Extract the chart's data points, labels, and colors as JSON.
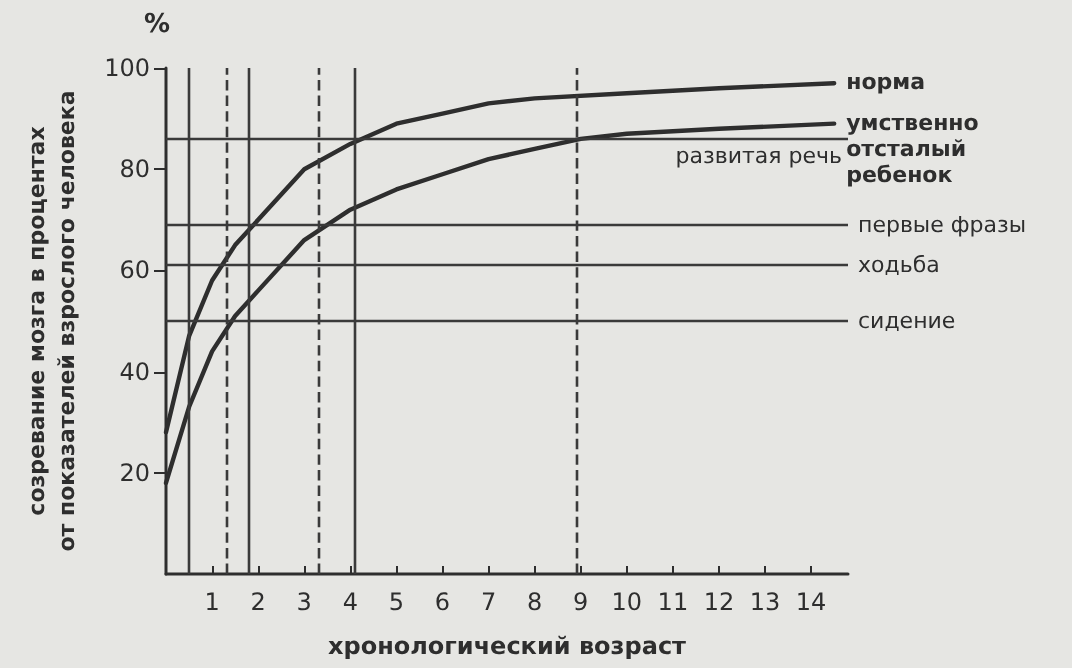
{
  "chart_data": {
    "type": "line",
    "xlabel": "хронологический возраст",
    "ylabel": "созревание мозга в процентах\nот показателей взрослого человека",
    "annotations": [
      "%"
    ],
    "xlim": [
      0,
      14.8
    ],
    "xticks": [
      1,
      2,
      3,
      4,
      5,
      6,
      7,
      8,
      9,
      10,
      11,
      12,
      13,
      14
    ],
    "ylim": [
      0,
      100
    ],
    "yticks": [
      20,
      40,
      60,
      80,
      100
    ],
    "grid": false,
    "legend": false,
    "marker": "none",
    "line_style": "solid",
    "series": [
      {
        "name": "норма",
        "color": "#2e2e2e",
        "x": [
          0,
          0.5,
          1,
          1.5,
          2,
          3,
          4,
          5,
          6,
          7,
          8,
          10,
          12,
          14.5
        ],
        "values": [
          28,
          47,
          58,
          65,
          70,
          80,
          85,
          89,
          91,
          93,
          94,
          95,
          96,
          97
        ]
      },
      {
        "name": "умственно отсталый ребенок",
        "color": "#2e2e2e",
        "x": [
          0,
          0.5,
          1,
          1.5,
          2,
          3,
          4,
          5,
          6,
          7,
          8,
          9,
          10,
          12,
          14.5
        ],
        "values": [
          18,
          33,
          44,
          51,
          56,
          66,
          72,
          76,
          79,
          82,
          84,
          86,
          87,
          88,
          89
        ]
      }
    ],
    "ref_lines": [
      {
        "axis": "y",
        "value": 86,
        "label": "развитая речь",
        "color": "#3a3a3a"
      },
      {
        "axis": "y",
        "value": 69,
        "label": "первые фразы",
        "color": "#3a3a3a"
      },
      {
        "axis": "y",
        "value": 61,
        "label": "ходьба",
        "color": "#3a3a3a"
      },
      {
        "axis": "y",
        "value": 50,
        "label": "сидение",
        "color": "#3a3a3a"
      },
      {
        "axis": "x",
        "value": 0.5,
        "color": "#3a3a3a",
        "line_style": "solid"
      },
      {
        "axis": "x",
        "value": 1.8,
        "color": "#3a3a3a",
        "line_style": "solid"
      },
      {
        "axis": "x",
        "value": 4.1,
        "color": "#3a3a3a",
        "line_style": "solid"
      },
      {
        "axis": "x",
        "value": 1.3,
        "color": "#3a3a3a",
        "line_style": "dashed"
      },
      {
        "axis": "x",
        "value": 3.3,
        "color": "#3a3a3a",
        "line_style": "dashed"
      },
      {
        "axis": "x",
        "value": 8.9,
        "color": "#3a3a3a",
        "line_style": "dashed"
      }
    ]
  }
}
